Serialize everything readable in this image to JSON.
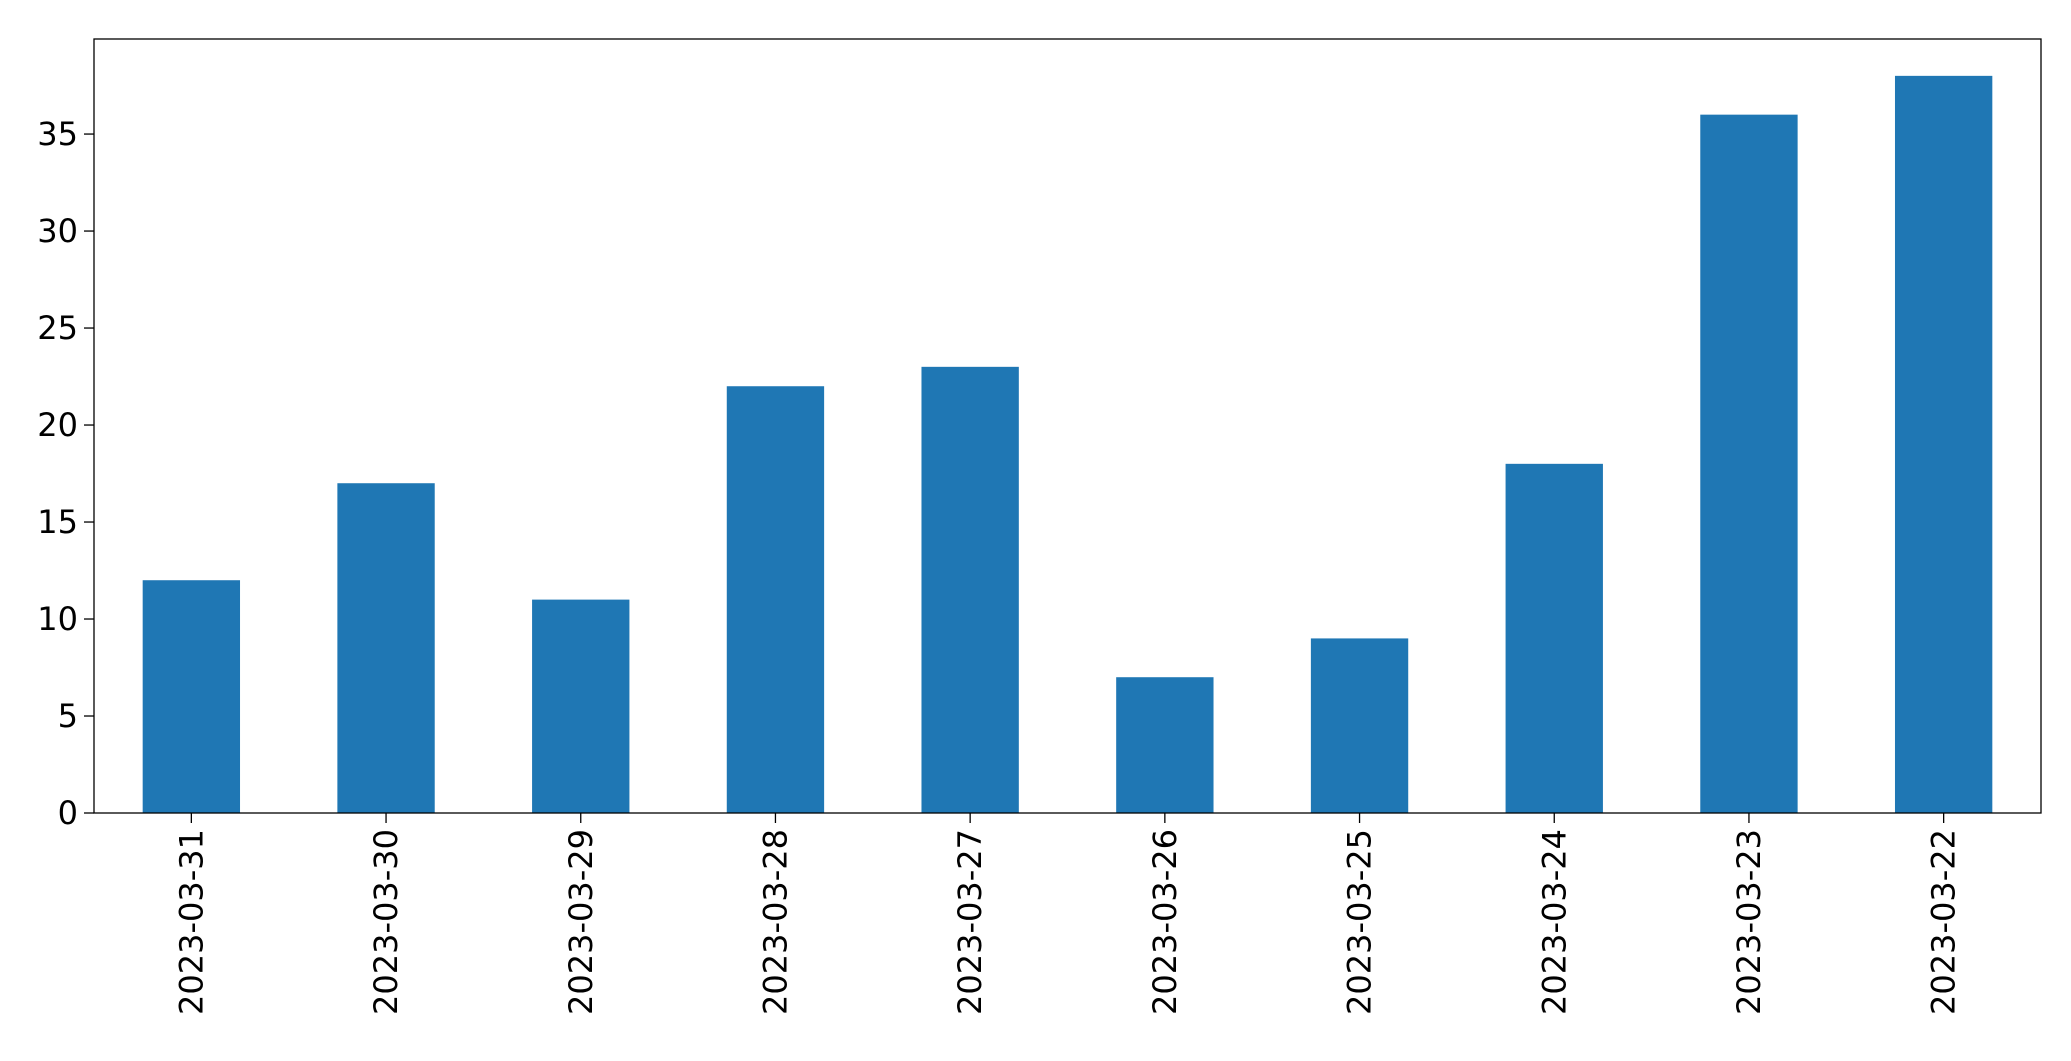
{
  "chart_data": {
    "type": "bar",
    "title": "",
    "xlabel": "",
    "ylabel": "",
    "categories": [
      "2023-03-31",
      "2023-03-30",
      "2023-03-29",
      "2023-03-28",
      "2023-03-27",
      "2023-03-26",
      "2023-03-25",
      "2023-03-24",
      "2023-03-23",
      "2023-03-22"
    ],
    "values": [
      12,
      17,
      11,
      22,
      23,
      7,
      9,
      18,
      36,
      38
    ],
    "yticks": [
      "0",
      "5",
      "10",
      "15",
      "20",
      "25",
      "30",
      "35"
    ],
    "ylim": [
      0,
      39.9
    ],
    "grid": false,
    "legend": "none",
    "bar_color": "#1f77b4",
    "x_tick_rotation": "vertical"
  }
}
